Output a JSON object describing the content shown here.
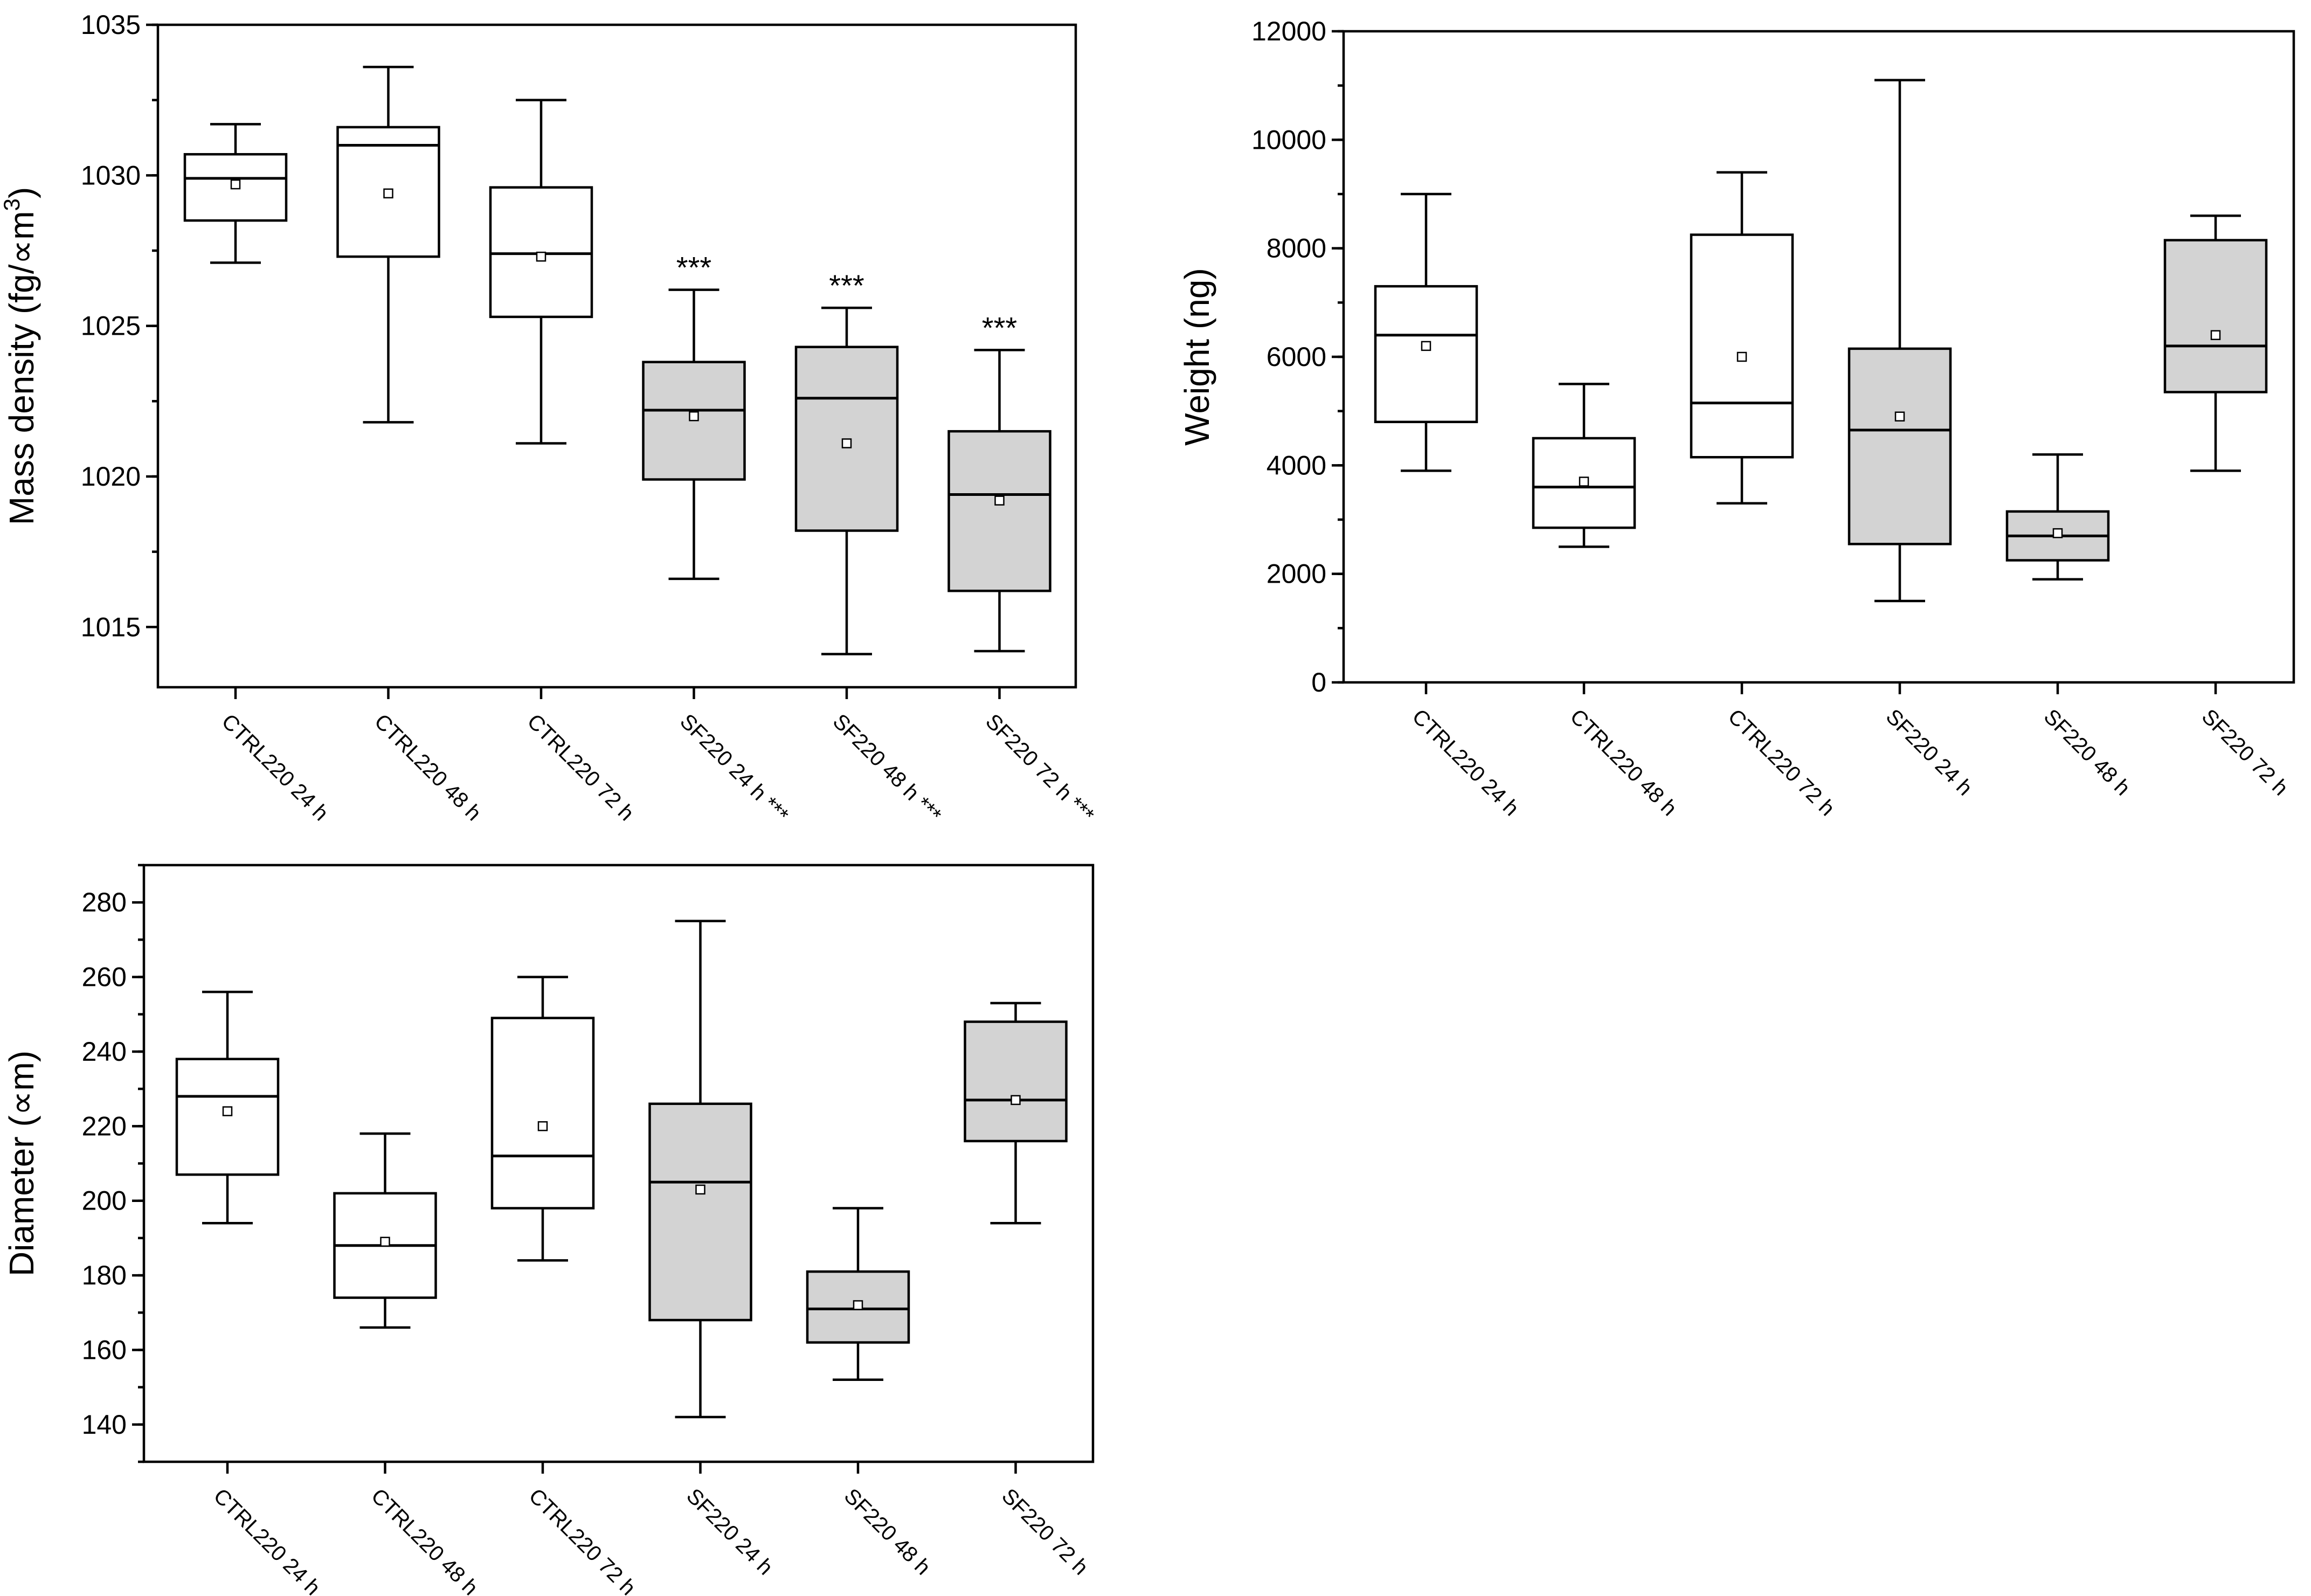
{
  "chart_data": [
    {
      "id": "mass-density",
      "type": "box",
      "ylabel": "Mass density (fg/∝m³)",
      "ylabel_main": "Mass density (fg/∝m",
      "ylabel_sup": "3",
      "ylabel_tail": ")",
      "ylim": [
        1013,
        1035
      ],
      "yticks": [
        1015,
        1020,
        1025,
        1030,
        1035
      ],
      "minor_step": 2.5,
      "framed": true,
      "colors": {
        "control": "#ffffff",
        "sf": "#d3d3d3"
      },
      "categories": [
        "CTRL220 24 h",
        "CTRL220 48 h",
        "CTRL220 72 h",
        "SF220 24 h ***",
        "SF220 48 h ***",
        "SF220 72 h ***"
      ],
      "groups": [
        "control",
        "control",
        "control",
        "sf",
        "sf",
        "sf"
      ],
      "boxes": [
        {
          "min": 1027.1,
          "q1": 1028.5,
          "median": 1029.9,
          "q3": 1030.7,
          "max": 1031.7,
          "mean": 1029.7
        },
        {
          "min": 1021.8,
          "q1": 1027.3,
          "median": 1031.0,
          "q3": 1031.6,
          "max": 1033.6,
          "mean": 1029.4
        },
        {
          "min": 1021.1,
          "q1": 1025.3,
          "median": 1027.4,
          "q3": 1029.6,
          "max": 1032.5,
          "mean": 1027.3
        },
        {
          "min": 1016.6,
          "q1": 1019.9,
          "median": 1022.2,
          "q3": 1023.8,
          "max": 1026.2,
          "mean": 1022.0
        },
        {
          "min": 1014.1,
          "q1": 1018.2,
          "median": 1022.6,
          "q3": 1024.3,
          "max": 1025.6,
          "mean": 1021.1
        },
        {
          "min": 1014.2,
          "q1": 1016.2,
          "median": 1019.4,
          "q3": 1021.5,
          "max": 1024.2,
          "mean": 1019.2
        }
      ],
      "annotations": [
        "",
        "",
        "",
        "***",
        "***",
        "***"
      ]
    },
    {
      "id": "weight",
      "type": "box",
      "ylabel": "Weight (ng)",
      "ylabel_main": "Weight (ng)",
      "ylabel_sup": "",
      "ylabel_tail": "",
      "ylim": [
        0,
        12000
      ],
      "yticks": [
        0,
        2000,
        4000,
        6000,
        8000,
        10000,
        12000
      ],
      "minor_step": 1000,
      "framed": true,
      "colors": {
        "control": "#ffffff",
        "sf": "#d3d3d3"
      },
      "categories": [
        "CTRL220 24 h",
        "CTRL220 48 h",
        "CTRL220 72 h",
        "SF220 24 h",
        "SF220 48 h",
        "SF220 72 h"
      ],
      "groups": [
        "control",
        "control",
        "control",
        "sf",
        "sf",
        "sf"
      ],
      "boxes": [
        {
          "min": 3900,
          "q1": 4800,
          "median": 6400,
          "q3": 7300,
          "max": 9000,
          "mean": 6200
        },
        {
          "min": 2500,
          "q1": 2850,
          "median": 3600,
          "q3": 4500,
          "max": 5500,
          "mean": 3700
        },
        {
          "min": 3300,
          "q1": 4150,
          "median": 5150,
          "q3": 8250,
          "max": 9400,
          "mean": 6000
        },
        {
          "min": 1500,
          "q1": 2550,
          "median": 4650,
          "q3": 6150,
          "max": 11100,
          "mean": 4900
        },
        {
          "min": 1900,
          "q1": 2250,
          "median": 2700,
          "q3": 3150,
          "max": 4200,
          "mean": 2750
        },
        {
          "min": 3900,
          "q1": 5350,
          "median": 6200,
          "q3": 8150,
          "max": 8600,
          "mean": 6400
        }
      ],
      "annotations": [
        "",
        "",
        "",
        "",
        "",
        ""
      ]
    },
    {
      "id": "diameter",
      "type": "box",
      "ylabel": "Diameter (∝m)",
      "ylabel_main": "Diameter (∝m)",
      "ylabel_sup": "",
      "ylabel_tail": "",
      "ylim": [
        130,
        290
      ],
      "yticks": [
        140,
        160,
        180,
        200,
        220,
        240,
        260,
        280
      ],
      "minor_step": 10,
      "framed": true,
      "colors": {
        "control": "#ffffff",
        "sf": "#d3d3d3"
      },
      "categories": [
        "CTRL220 24 h",
        "CTRL220 48 h",
        "CTRL220 72 h",
        "SF220 24 h",
        "SF220 48 h",
        "SF220 72 h"
      ],
      "groups": [
        "control",
        "control",
        "control",
        "sf",
        "sf",
        "sf"
      ],
      "boxes": [
        {
          "min": 194,
          "q1": 207,
          "median": 228,
          "q3": 238,
          "max": 256,
          "mean": 224
        },
        {
          "min": 166,
          "q1": 174,
          "median": 188,
          "q3": 202,
          "max": 218,
          "mean": 189
        },
        {
          "min": 184,
          "q1": 198,
          "median": 212,
          "q3": 249,
          "max": 260,
          "mean": 220
        },
        {
          "min": 142,
          "q1": 168,
          "median": 205,
          "q3": 226,
          "max": 275,
          "mean": 203
        },
        {
          "min": 152,
          "q1": 162,
          "median": 171,
          "q3": 181,
          "max": 198,
          "mean": 172
        },
        {
          "min": 194,
          "q1": 216,
          "median": 227,
          "q3": 248,
          "max": 253,
          "mean": 227
        }
      ],
      "annotations": [
        "",
        "",
        "",
        "",
        "",
        ""
      ]
    }
  ]
}
